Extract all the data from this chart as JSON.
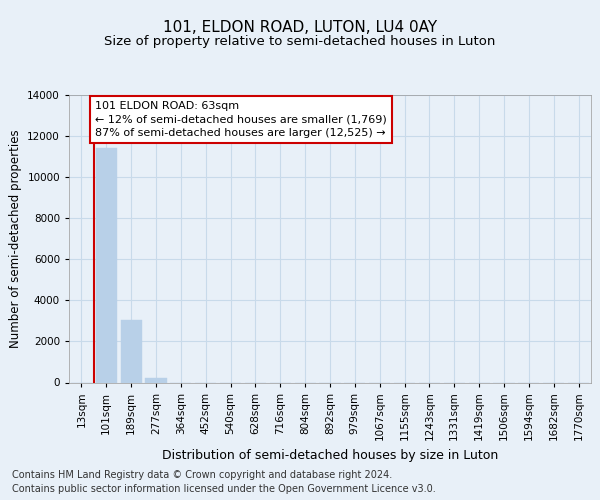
{
  "title": "101, ELDON ROAD, LUTON, LU4 0AY",
  "subtitle": "Size of property relative to semi-detached houses in Luton",
  "xlabel": "Distribution of semi-detached houses by size in Luton",
  "ylabel": "Number of semi-detached properties",
  "categories": [
    "13sqm",
    "101sqm",
    "189sqm",
    "277sqm",
    "364sqm",
    "452sqm",
    "540sqm",
    "628sqm",
    "716sqm",
    "804sqm",
    "892sqm",
    "979sqm",
    "1067sqm",
    "1155sqm",
    "1243sqm",
    "1331sqm",
    "1419sqm",
    "1506sqm",
    "1594sqm",
    "1682sqm",
    "1770sqm"
  ],
  "values": [
    0,
    11400,
    3050,
    200,
    0,
    0,
    0,
    0,
    0,
    0,
    0,
    0,
    0,
    0,
    0,
    0,
    0,
    0,
    0,
    0,
    0
  ],
  "bar_color": "#b8d0e8",
  "bar_edge_color": "#b8d0e8",
  "vline_color": "#cc0000",
  "vline_x_index": 0.5,
  "annotation_text": "101 ELDON ROAD: 63sqm\n← 12% of semi-detached houses are smaller (1,769)\n87% of semi-detached houses are larger (12,525) →",
  "annotation_box_color": "#ffffff",
  "annotation_border_color": "#cc0000",
  "ylim": [
    0,
    14000
  ],
  "yticks": [
    0,
    2000,
    4000,
    6000,
    8000,
    10000,
    12000,
    14000
  ],
  "grid_color": "#c8daea",
  "background_color": "#e8f0f8",
  "plot_bg_color": "#e8f0f8",
  "footer_line1": "Contains HM Land Registry data © Crown copyright and database right 2024.",
  "footer_line2": "Contains public sector information licensed under the Open Government Licence v3.0.",
  "title_fontsize": 11,
  "subtitle_fontsize": 9.5,
  "xlabel_fontsize": 9,
  "ylabel_fontsize": 8.5,
  "tick_fontsize": 7.5,
  "annot_fontsize": 8,
  "footer_fontsize": 7
}
